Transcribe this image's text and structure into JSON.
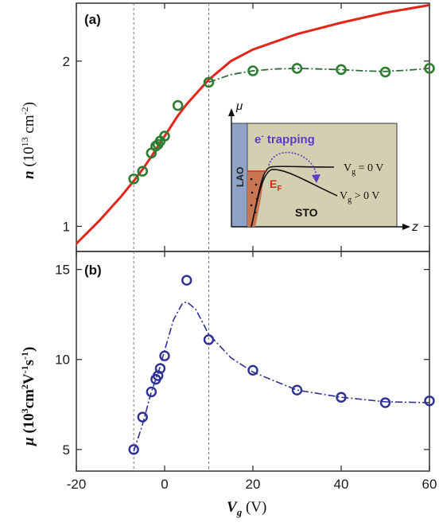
{
  "colors": {
    "red_fit": "#e3261c",
    "green_marker": "#2e7d32",
    "green_line": "#2e6b3a",
    "blue_marker": "#2e3192",
    "blue_line": "#2e3192",
    "inset_bg": "#d3cfb0",
    "lao_fill": "#8fa3c7",
    "fill_region": "#c8764f",
    "trapping_text": "#5a3ec8",
    "ef_text": "#e3261c"
  },
  "chart_data": [
    {
      "panel": "(a)",
      "type": "scatter",
      "ylabel_parts": [
        "n",
        " (10",
        "13",
        " cm",
        "-2",
        ")"
      ],
      "ylim": [
        0.9,
        2.55
      ],
      "yscale": "log",
      "xlim": [
        -20,
        60
      ],
      "yticks": [
        1,
        2
      ],
      "ytick_labels": [
        "1",
        "2"
      ],
      "vlines": [
        -7,
        10
      ],
      "series": [
        {
          "style": "markers",
          "x": [
            -7,
            -5,
            -3,
            -2,
            -1.5,
            -1,
            0,
            3,
            10,
            20,
            30,
            40,
            50,
            60
          ],
          "y": [
            1.22,
            1.26,
            1.36,
            1.4,
            1.41,
            1.43,
            1.46,
            1.66,
            1.83,
            1.92,
            1.94,
            1.93,
            1.91,
            1.94
          ]
        },
        {
          "style": "solid-line",
          "x": [
            -20,
            -15,
            -10,
            -7,
            -5,
            -3,
            -1,
            0,
            3,
            5,
            10,
            15,
            20,
            30,
            40,
            50,
            60
          ],
          "y": [
            0.93,
            1.02,
            1.13,
            1.21,
            1.27,
            1.34,
            1.42,
            1.46,
            1.59,
            1.67,
            1.85,
            2.0,
            2.1,
            2.24,
            2.35,
            2.45,
            2.53
          ]
        },
        {
          "style": "dash-dot-line",
          "x": [
            10,
            15,
            20,
            25,
            30,
            35,
            40,
            45,
            50,
            55,
            60
          ],
          "y": [
            1.83,
            1.89,
            1.92,
            1.935,
            1.94,
            1.935,
            1.93,
            1.92,
            1.915,
            1.925,
            1.94
          ]
        }
      ],
      "inset": {
        "y_axis_label": "μ",
        "x_axis_label": "z",
        "lao": "LAO",
        "trapping_prefix": "e",
        "trapping_sup": "-",
        "trapping_suffix": " trapping",
        "ef_main": "E",
        "ef_sub": "F",
        "sto": "STO",
        "vg0_v": "V",
        "vg0_sub": "g",
        "vg0_rest": " = 0 V",
        "vgpos_v": "V",
        "vgpos_sub": "g",
        "vgpos_rest": " > 0 V"
      }
    },
    {
      "panel": "(b)",
      "type": "scatter",
      "ylabel_parts": [
        "μ",
        " (10",
        "3",
        "cm",
        "2",
        "V",
        "-1",
        "s",
        "-1",
        ")"
      ],
      "ylim": [
        3.8,
        16
      ],
      "yticks": [
        5,
        10,
        15
      ],
      "ytick_labels": [
        "5",
        "10",
        "15"
      ],
      "xlim": [
        -20,
        60
      ],
      "xticks": [
        -20,
        0,
        20,
        40,
        60
      ],
      "xtick_labels": [
        "-20",
        "0",
        "20",
        "40",
        "60"
      ],
      "xlabel_parts": [
        "V",
        "g",
        " (V)"
      ],
      "vlines": [
        -7,
        10
      ],
      "series": [
        {
          "style": "markers",
          "x": [
            -7,
            -5,
            -3,
            -2,
            -1.5,
            -1,
            0,
            5,
            10,
            20,
            30,
            40,
            50,
            60
          ],
          "y": [
            5.0,
            6.8,
            8.2,
            8.9,
            9.1,
            9.5,
            10.2,
            14.4,
            11.1,
            9.4,
            8.3,
            7.9,
            7.6,
            7.7
          ]
        },
        {
          "style": "dash-dot-line",
          "x": [
            -7,
            -5,
            -3,
            -1,
            0,
            2,
            4,
            5,
            7,
            10,
            15,
            20,
            30,
            40,
            50,
            60
          ],
          "y": [
            4.9,
            6.4,
            8.2,
            9.6,
            10.5,
            12.2,
            13.1,
            13.2,
            12.8,
            11.4,
            10.1,
            9.3,
            8.3,
            7.9,
            7.65,
            7.6
          ]
        }
      ]
    }
  ]
}
